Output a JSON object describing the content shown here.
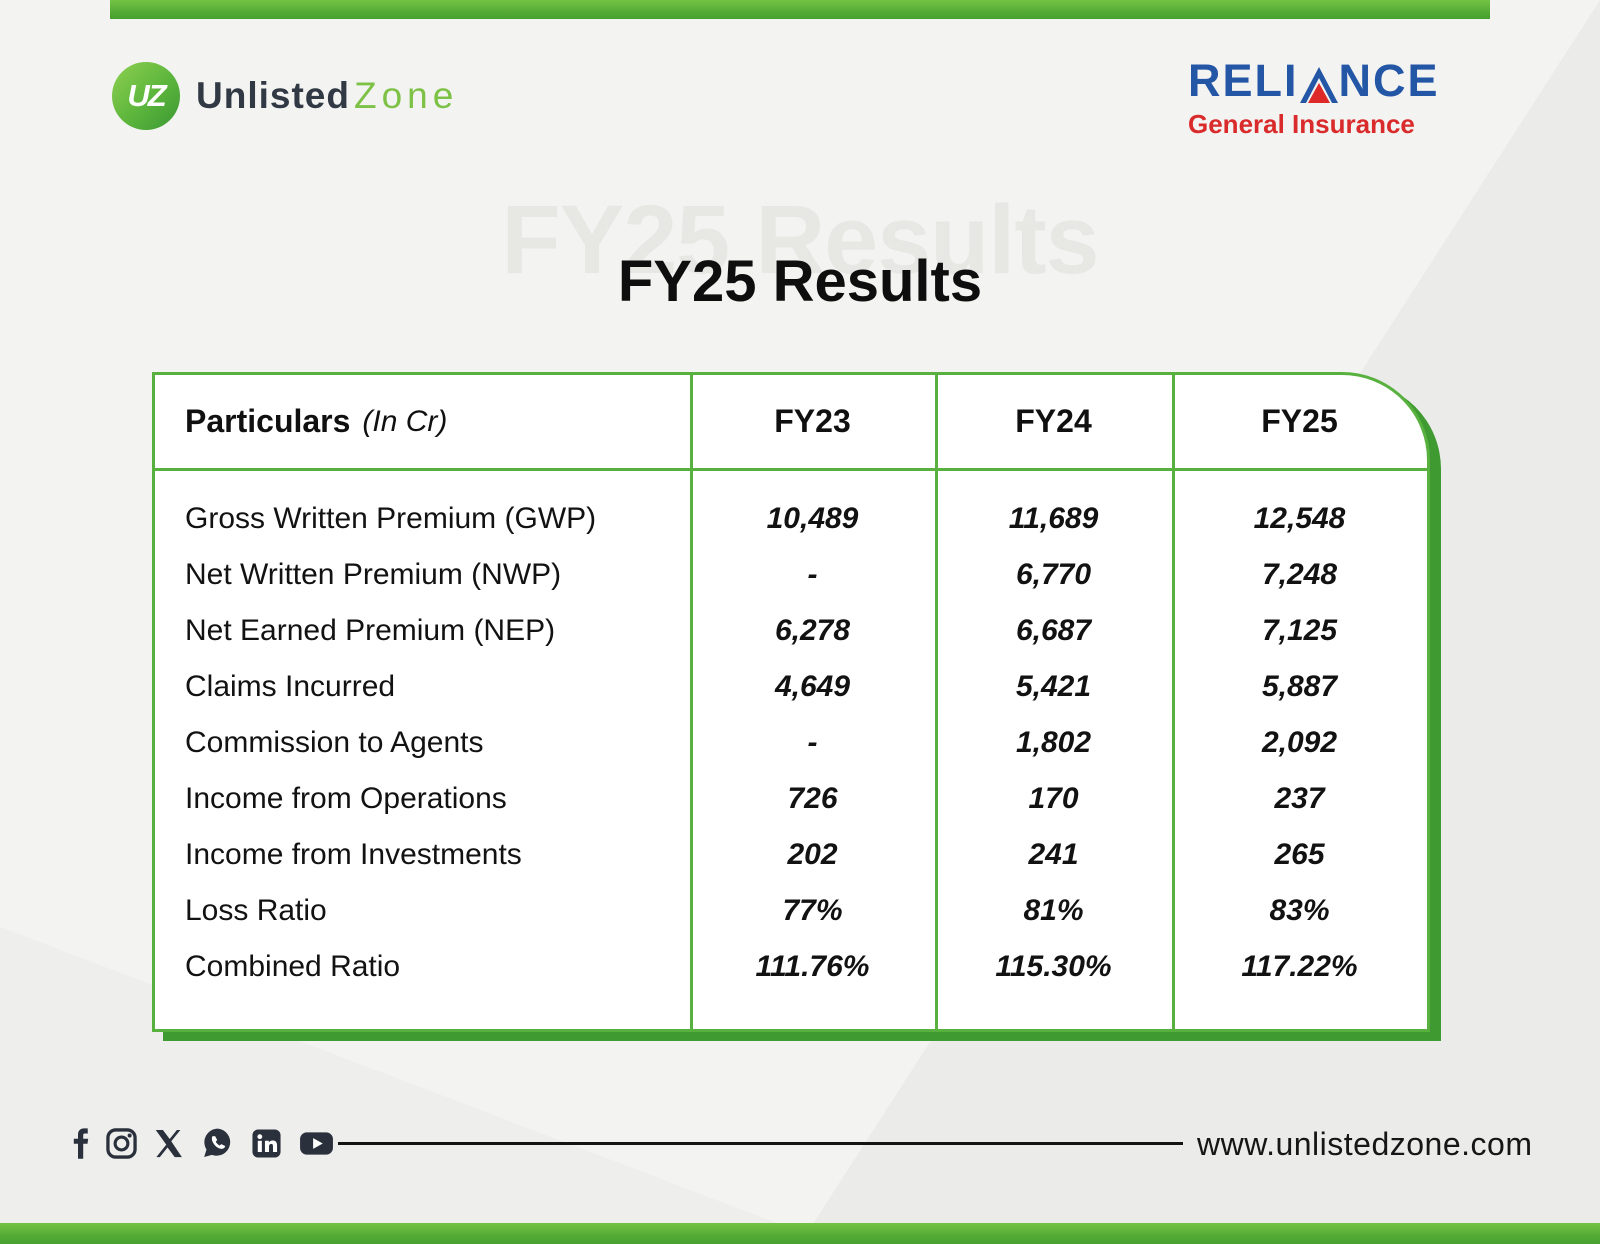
{
  "brand": {
    "monogram": "UZ",
    "name_primary": "Unlisted",
    "name_secondary": "Zone"
  },
  "partner": {
    "name_prefix": "RELI",
    "name_suffix": "NCE",
    "subtitle": "General Insurance"
  },
  "title": {
    "text": "FY25 Results",
    "watermark": "FY25 Results"
  },
  "table": {
    "header": {
      "particulars_label": "Particulars",
      "particulars_note": "(In Cr)",
      "columns": [
        "FY23",
        "FY24",
        "FY25"
      ]
    },
    "rows": [
      {
        "label": "Gross Written Premium (GWP)",
        "fy23": "10,489",
        "fy24": "11,689",
        "fy25": "12,548"
      },
      {
        "label": "Net Written Premium (NWP)",
        "fy23": "-",
        "fy24": "6,770",
        "fy25": "7,248"
      },
      {
        "label": "Net Earned Premium (NEP)",
        "fy23": "6,278",
        "fy24": "6,687",
        "fy25": "7,125"
      },
      {
        "label": "Claims Incurred",
        "fy23": "4,649",
        "fy24": "5,421",
        "fy25": "5,887"
      },
      {
        "label": "Commission to Agents",
        "fy23": "-",
        "fy24": "1,802",
        "fy25": "2,092"
      },
      {
        "label": "Income from Operations",
        "fy23": "726",
        "fy24": "170",
        "fy25": "237"
      },
      {
        "label": "Income from Investments",
        "fy23": "202",
        "fy24": "241",
        "fy25": "265"
      },
      {
        "label": "Loss Ratio",
        "fy23": "77%",
        "fy24": "81%",
        "fy25": "83%"
      },
      {
        "label": "Combined Ratio",
        "fy23": "111.76%",
        "fy24": "115.30%",
        "fy25": "117.22%"
      }
    ]
  },
  "footer": {
    "website": "www.unlistedzone.com",
    "social_icons": [
      "facebook-icon",
      "instagram-icon",
      "x-icon",
      "whatsapp-icon",
      "linkedin-icon",
      "youtube-icon"
    ]
  },
  "colors": {
    "accent_green": "#58b13e",
    "accent_green_dark": "#3f9a31",
    "bar_gradient_top": "#74c244",
    "bar_gradient_bottom": "#47a02f",
    "reliance_blue": "#2456a6",
    "reliance_red": "#dd2a28",
    "icon_dark": "#2a303c",
    "watermark_gray": "#e7e7e4"
  }
}
